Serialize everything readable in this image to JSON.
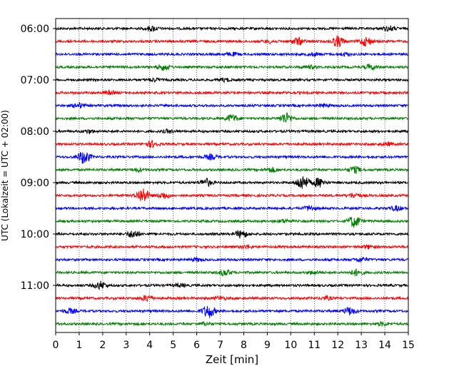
{
  "chart_data": {
    "type": "line",
    "title": "",
    "xlabel": "Zeit  [min]",
    "ylabel": "UTC (Lokalzeit = UTC + 02:00)",
    "xlim": [
      0,
      15
    ],
    "x_ticks": [
      "0",
      "1",
      "2",
      "3",
      "4",
      "5",
      "6",
      "7",
      "8",
      "9",
      "10",
      "11",
      "12",
      "13",
      "14",
      "15"
    ],
    "y_ticks": [
      "06:00",
      "07:00",
      "08:00",
      "09:00",
      "10:00",
      "11:00"
    ],
    "grid": "vertical dotted",
    "trace_colors": [
      "#000000",
      "#ff0000",
      "#0000ff",
      "#008000"
    ],
    "traces": [
      {
        "time": "06:00",
        "color": "#000000",
        "events": [
          [
            4.1,
            3
          ],
          [
            14.2,
            3
          ]
        ]
      },
      {
        "time": "06:15",
        "color": "#ff0000",
        "events": [
          [
            9.1,
            2
          ],
          [
            10.3,
            5
          ],
          [
            12.0,
            7
          ],
          [
            13.2,
            6
          ]
        ]
      },
      {
        "time": "06:30",
        "color": "#0000ff",
        "events": [
          [
            7.5,
            2
          ],
          [
            11.0,
            2
          ],
          [
            12.3,
            2
          ]
        ]
      },
      {
        "time": "06:45",
        "color": "#008000",
        "events": [
          [
            4.6,
            4
          ],
          [
            10.8,
            2
          ],
          [
            13.4,
            3
          ]
        ]
      },
      {
        "time": "07:00",
        "color": "#000000",
        "events": [
          [
            4.2,
            2
          ],
          [
            7.2,
            2
          ]
        ]
      },
      {
        "time": "07:15",
        "color": "#ff0000",
        "events": [
          [
            2.3,
            2
          ]
        ]
      },
      {
        "time": "07:30",
        "color": "#0000ff",
        "events": [
          [
            1.0,
            3
          ],
          [
            11.4,
            2
          ]
        ]
      },
      {
        "time": "07:45",
        "color": "#008000",
        "events": [
          [
            7.5,
            5
          ],
          [
            9.8,
            7
          ]
        ]
      },
      {
        "time": "08:00",
        "color": "#000000",
        "events": [
          [
            1.4,
            2
          ],
          [
            4.8,
            2
          ]
        ]
      },
      {
        "time": "08:15",
        "color": "#ff0000",
        "events": [
          [
            4.1,
            4
          ],
          [
            14.1,
            2
          ]
        ]
      },
      {
        "time": "08:30",
        "color": "#0000ff",
        "events": [
          [
            1.2,
            9
          ],
          [
            6.6,
            3
          ]
        ]
      },
      {
        "time": "08:45",
        "color": "#008000",
        "events": [
          [
            3.5,
            2
          ],
          [
            9.2,
            3
          ],
          [
            12.7,
            4
          ]
        ]
      },
      {
        "time": "09:00",
        "color": "#000000",
        "events": [
          [
            6.4,
            5
          ],
          [
            10.5,
            10
          ],
          [
            11.2,
            6
          ]
        ]
      },
      {
        "time": "09:15",
        "color": "#ff0000",
        "events": [
          [
            3.7,
            10
          ],
          [
            4.6,
            4
          ],
          [
            12.7,
            3
          ]
        ]
      },
      {
        "time": "09:30",
        "color": "#0000ff",
        "events": [
          [
            10.8,
            3
          ],
          [
            14.5,
            3
          ]
        ]
      },
      {
        "time": "09:45",
        "color": "#008000",
        "events": [
          [
            12.7,
            8
          ],
          [
            9.7,
            2
          ]
        ]
      },
      {
        "time": "10:00",
        "color": "#000000",
        "events": [
          [
            3.3,
            5
          ],
          [
            7.9,
            5
          ]
        ]
      },
      {
        "time": "10:15",
        "color": "#ff0000",
        "events": [
          [
            8.1,
            2
          ],
          [
            13.3,
            2
          ]
        ]
      },
      {
        "time": "10:30",
        "color": "#0000ff",
        "events": [
          [
            6.0,
            2
          ],
          [
            13.0,
            3
          ]
        ]
      },
      {
        "time": "10:45",
        "color": "#008000",
        "events": [
          [
            7.2,
            4
          ],
          [
            12.8,
            4
          ],
          [
            11.0,
            2
          ]
        ]
      },
      {
        "time": "11:00",
        "color": "#000000",
        "events": [
          [
            1.9,
            5
          ],
          [
            5.3,
            2
          ]
        ]
      },
      {
        "time": "11:15",
        "color": "#ff0000",
        "events": [
          [
            3.9,
            4
          ],
          [
            7.0,
            2
          ],
          [
            11.5,
            2
          ]
        ]
      },
      {
        "time": "11:30",
        "color": "#0000ff",
        "events": [
          [
            0.6,
            3
          ],
          [
            6.5,
            9
          ],
          [
            12.5,
            5
          ]
        ]
      },
      {
        "time": "11:45",
        "color": "#008000",
        "events": [
          [
            6.4,
            2
          ],
          [
            13.9,
            2
          ]
        ]
      }
    ]
  }
}
